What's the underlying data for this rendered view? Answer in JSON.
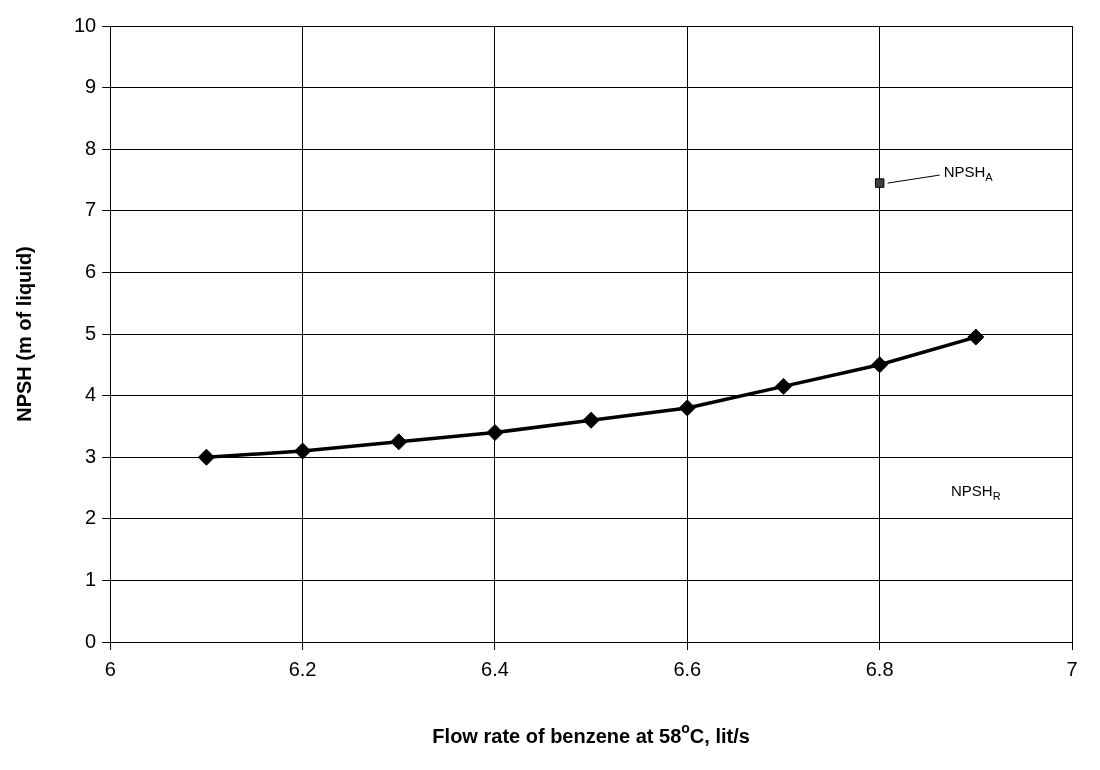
{
  "chart_data": {
    "type": "line",
    "xlabel": "Flow rate of benzene at 58$^{o}$C, lit/s",
    "ylabel": "NPSH (m of liquid)",
    "xlim": [
      6,
      7
    ],
    "xticks": [
      6,
      6.2,
      6.4,
      6.6,
      6.8,
      7
    ],
    "ylim": [
      0,
      10
    ],
    "yticks": [
      0,
      1,
      2,
      3,
      4,
      5,
      6,
      7,
      8,
      9,
      10
    ],
    "grid": true,
    "legend": false,
    "series": [
      {
        "color": "#000000",
        "marker": "diamond",
        "x": [
          6.1,
          6.2,
          6.3,
          6.4,
          6.5,
          6.6,
          6.7,
          6.8,
          6.9
        ],
        "values": [
          3.0,
          3.1,
          3.25,
          3.4,
          3.6,
          3.8,
          4.15,
          4.5,
          4.95
        ]
      },
      {
        "type": "scatter",
        "color": "#404040",
        "marker": "square",
        "x": [
          6.8
        ],
        "values": [
          7.45
        ]
      }
    ],
    "annotations": [
      {
        "text": "NPSH$_{A}$",
        "x": 6.8,
        "y": 7.45
      },
      "NPSH$_{R}$"
    ]
  }
}
